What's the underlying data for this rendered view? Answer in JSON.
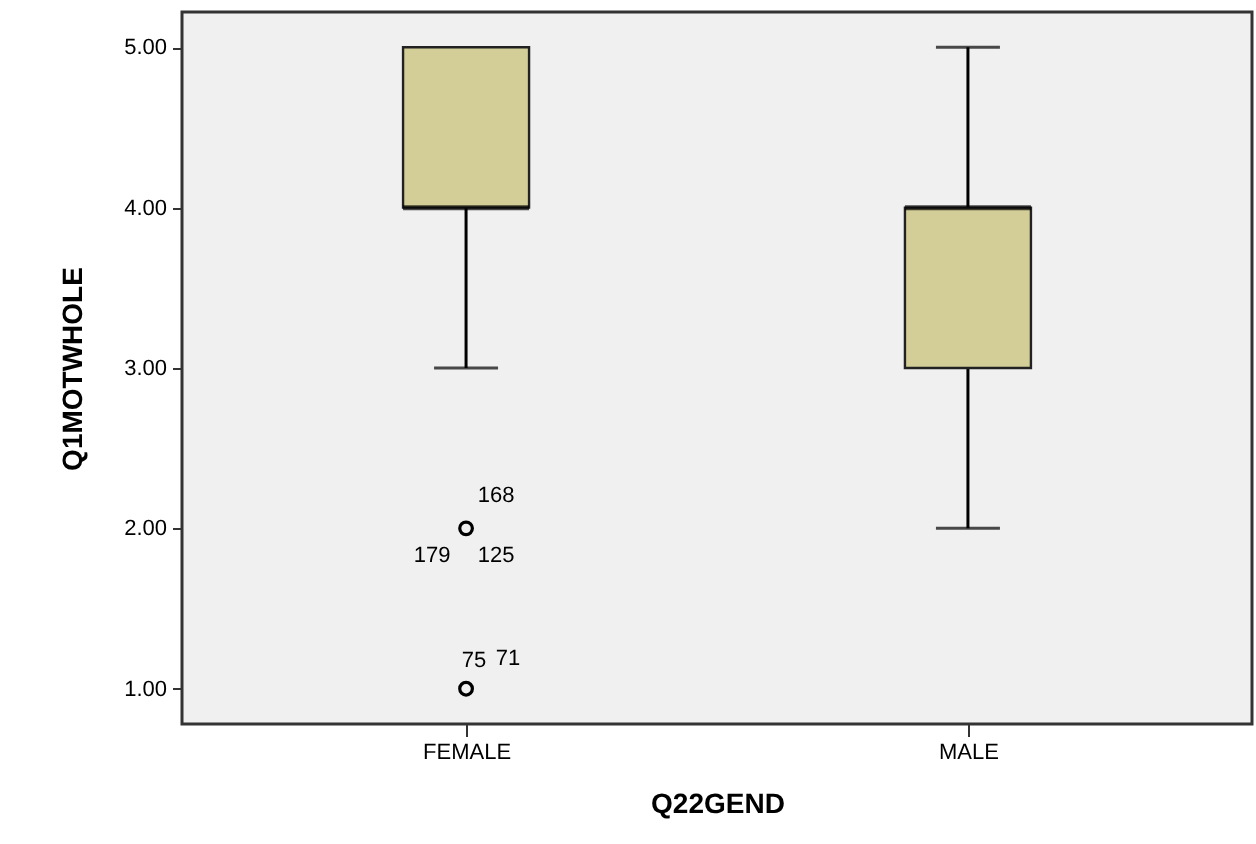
{
  "chart_data": {
    "type": "box",
    "xlabel": "Q22GEND",
    "ylabel": "Q1MOTWHOLE",
    "categories": [
      "FEMALE",
      "MALE"
    ],
    "boxes": [
      {
        "low": 3,
        "q1": 4,
        "median": 4,
        "q3": 5,
        "high": 5,
        "outliers": [
          2,
          1
        ]
      },
      {
        "low": 2,
        "q1": 3,
        "median": 4,
        "q3": 4,
        "high": 5
      }
    ],
    "color": "#d3ce97",
    "ylim": [
      0.78,
      5.22
    ],
    "yticks": [
      {
        "value": 1,
        "label": "1.00"
      },
      {
        "value": 2,
        "label": "2.00"
      },
      {
        "value": 3,
        "label": "3.00"
      },
      {
        "value": 4,
        "label": "4.00"
      },
      {
        "value": 5,
        "label": "5.00"
      }
    ],
    "annotations": [
      "168",
      "179",
      "125",
      "75",
      "71"
    ]
  }
}
